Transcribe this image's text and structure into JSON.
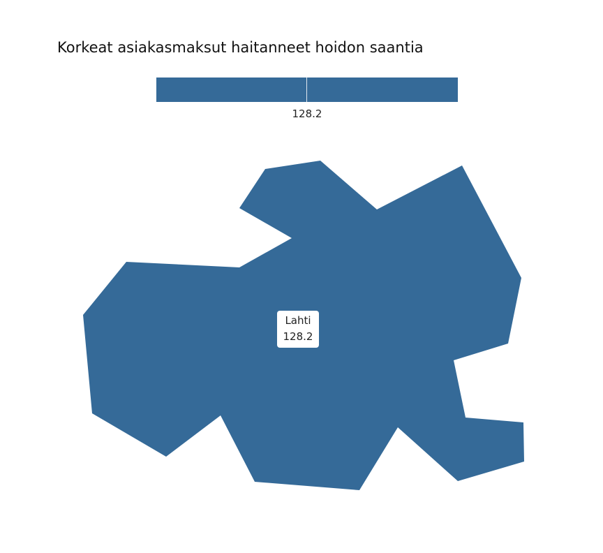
{
  "title": "Korkeat asiakasmaksut haitanneet hoidon saantia",
  "legend": {
    "value_label": "128.2",
    "color": "#356a98",
    "min": 128.2,
    "max": 128.2
  },
  "regions": [
    {
      "name": "Lahti",
      "value": 128.2,
      "value_label": "128.2",
      "color": "#356a98"
    }
  ]
}
